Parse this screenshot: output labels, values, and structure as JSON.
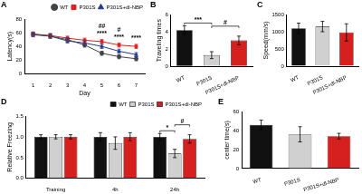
{
  "chart_data": [
    {
      "type": "line",
      "title": "A",
      "x_label": "Day",
      "y_label": "Latency(s)",
      "x": [
        1,
        2,
        3,
        4,
        5,
        6,
        7
      ],
      "xlim": [
        0.5,
        7.5
      ],
      "xticks": [
        1,
        2,
        3,
        4,
        5,
        6,
        7
      ],
      "ylim": [
        0,
        80
      ],
      "yticks": [
        0,
        20,
        40,
        60,
        80
      ],
      "grid": false,
      "legend": "top-right",
      "series": [
        {
          "name": "WT",
          "color": "#444444",
          "marker": "circle",
          "values": [
            58,
            55,
            50,
            42,
            30,
            25,
            22
          ],
          "errors": [
            3,
            3,
            3,
            3,
            3,
            3,
            3
          ]
        },
        {
          "name": "P301S",
          "color": "#e02020",
          "marker": "rect",
          "values": [
            58,
            56,
            52,
            49,
            47,
            42,
            40
          ],
          "errors": [
            3,
            3,
            3,
            3,
            3,
            3,
            3
          ]
        },
        {
          "name": "P301S+dl-NBP",
          "color": "#1f3a93",
          "marker": "triangle",
          "values": [
            57,
            55,
            48,
            45,
            40,
            33,
            28
          ],
          "errors": [
            3,
            3,
            3,
            3,
            3,
            3,
            3
          ]
        }
      ],
      "significance": [
        {
          "text": "****",
          "x": 5
        },
        {
          "text": "****",
          "x": 6
        },
        {
          "text": "****",
          "x": 7
        },
        {
          "text": "##",
          "x": 5
        },
        {
          "text": "#",
          "x": 6
        }
      ]
    },
    {
      "type": "bar",
      "title": "B",
      "y_label": "Traveling times",
      "categories": [
        "WT",
        "P301S",
        "P301S+dl-NBP"
      ],
      "values": [
        4.2,
        1.3,
        3.0
      ],
      "errors": [
        0.5,
        0.4,
        0.5
      ],
      "colors": [
        "#111111",
        "#d0d0d0",
        "#d62020"
      ],
      "ylim": [
        0,
        6
      ],
      "yticks": [
        0,
        2,
        4,
        6
      ],
      "grid": false,
      "significance": [
        {
          "text": "***",
          "categories": [
            "WT",
            "P301S"
          ]
        },
        {
          "text": "#",
          "categories": [
            "P301S",
            "P301S+dl-NBP"
          ]
        }
      ]
    },
    {
      "type": "bar",
      "title": "C",
      "y_label": "Speed(mm/s)",
      "categories": [
        "WT",
        "P301S",
        "P301S+dl-NBP"
      ],
      "values": [
        1100,
        1150,
        980
      ],
      "errors": [
        150,
        150,
        250
      ],
      "colors": [
        "#111111",
        "#d0d0d0",
        "#d62020"
      ],
      "ylim": [
        0,
        1500
      ],
      "yticks": [
        0,
        500,
        1000,
        1500
      ],
      "grid": false
    },
    {
      "type": "bar",
      "title": "D",
      "y_label": "Relative Freezing",
      "categories": [
        "Training",
        "4h",
        "24h"
      ],
      "legend": "top-right",
      "series": [
        {
          "name": "WT",
          "color": "#111111",
          "values": [
            1,
            1,
            1
          ],
          "errors": [
            0.05,
            0.1,
            0.08
          ]
        },
        {
          "name": "P301S",
          "color": "#d0d0d0",
          "values": [
            1,
            0.85,
            0.6
          ],
          "errors": [
            0.05,
            0.15,
            0.1
          ]
        },
        {
          "name": "P301S+dl-NBP",
          "color": "#d62020",
          "values": [
            1,
            1.0,
            0.95
          ],
          "errors": [
            0.05,
            0.1,
            0.1
          ]
        }
      ],
      "ylim": [
        0,
        1.5
      ],
      "yticks": [
        {
          "value": 0,
          "label": "0.0"
        },
        {
          "value": 0.5,
          "label": "0.5"
        },
        {
          "value": 1,
          "label": "1.0"
        },
        {
          "value": 1.5,
          "label": "1.5"
        }
      ],
      "grid": false,
      "significance": [
        {
          "text": "*",
          "category": "24h",
          "series": [
            "WT",
            "P301S"
          ]
        },
        {
          "text": "#",
          "category": "24h",
          "series": [
            "P301S",
            "P301S+dl-NBP"
          ]
        }
      ]
    },
    {
      "type": "bar",
      "title": "E",
      "y_label": "center time(s)",
      "categories": [
        "WT",
        "P301S",
        "P301S+dl-NBP"
      ],
      "values": [
        46,
        36,
        34
      ],
      "errors": [
        5,
        8,
        3
      ],
      "colors": [
        "#111111",
        "#d0d0d0",
        "#d62020"
      ],
      "ylim": [
        0,
        60
      ],
      "yticks": [
        0,
        20,
        40,
        60
      ],
      "grid": false
    }
  ]
}
